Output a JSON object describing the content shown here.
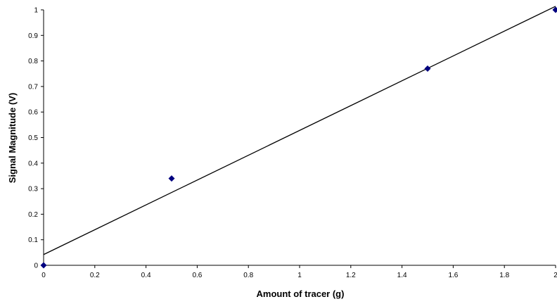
{
  "chart_data": {
    "type": "scatter",
    "x_label": "Amount of tracer (g)",
    "y_label": "Signal Magnitude (V)",
    "x": [
      0,
      0.5,
      1.5,
      2
    ],
    "values": [
      0,
      0.34,
      0.77,
      1
    ],
    "color": "#000080",
    "trendline": {
      "x": [
        0,
        2
      ],
      "values": [
        0.042,
        1.014
      ],
      "color": "#000000"
    },
    "xlim": [
      0,
      2
    ],
    "xticks": [
      0,
      0.2,
      0.4,
      0.6,
      0.8,
      1,
      1.2,
      1.4,
      1.6,
      1.8,
      2
    ],
    "ylim": [
      0,
      1
    ],
    "yticks": [
      0,
      0.1,
      0.2,
      0.3,
      0.4,
      0.5,
      0.6,
      0.7,
      0.8,
      0.9,
      1
    ],
    "grid": false
  }
}
